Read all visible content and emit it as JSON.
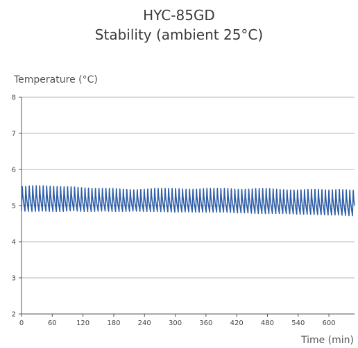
{
  "title": "HYC-85GD",
  "subtitle": "Stability (ambient 25°C)",
  "chart_data": {
    "type": "line",
    "title": "HYC-85GD",
    "subtitle": "Stability (ambient 25°C)",
    "xlabel": "Time (min)",
    "ylabel": "Temperature (°C)",
    "xlim": [
      0,
      650
    ],
    "ylim": [
      2,
      8
    ],
    "xticks": [
      0,
      60,
      120,
      180,
      240,
      300,
      360,
      420,
      480,
      540,
      600
    ],
    "yticks": [
      2,
      3,
      4,
      5,
      6,
      7,
      8
    ],
    "grid": "horizontal",
    "legend": "none",
    "series": [
      {
        "color": "#2f5ea8",
        "cycle_period_min": 6.8,
        "x": [
          0,
          20,
          40,
          60,
          80,
          100,
          120,
          140,
          160,
          180,
          200,
          220,
          240,
          260,
          280,
          300,
          320,
          340,
          360,
          380,
          400,
          420,
          440,
          460,
          480,
          500,
          520,
          540,
          560,
          580,
          600,
          620,
          640,
          650
        ],
        "max": [
          5.55,
          5.58,
          5.58,
          5.56,
          5.55,
          5.55,
          5.52,
          5.5,
          5.5,
          5.5,
          5.48,
          5.46,
          5.48,
          5.5,
          5.5,
          5.5,
          5.48,
          5.48,
          5.5,
          5.5,
          5.5,
          5.48,
          5.48,
          5.5,
          5.5,
          5.48,
          5.46,
          5.46,
          5.48,
          5.48,
          5.46,
          5.48,
          5.46,
          5.45
        ],
        "min": [
          4.85,
          4.84,
          4.85,
          4.84,
          4.84,
          4.86,
          4.84,
          4.84,
          4.85,
          4.84,
          4.84,
          4.85,
          4.84,
          4.84,
          4.83,
          4.82,
          4.83,
          4.82,
          4.82,
          4.82,
          4.82,
          4.8,
          4.8,
          4.78,
          4.78,
          4.78,
          4.78,
          4.76,
          4.76,
          4.75,
          4.74,
          4.74,
          4.72,
          4.72
        ]
      }
    ]
  }
}
